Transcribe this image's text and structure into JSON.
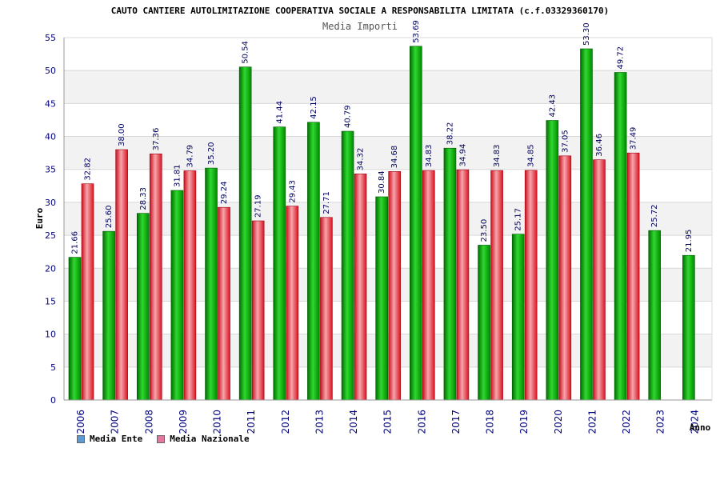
{
  "chart_data": {
    "type": "bar",
    "title": "CAUTO CANTIERE AUTOLIMITAZIONE COOPERATIVA SOCIALE A RESPONSABILITA LIMITATA (c.f.03329360170)",
    "subtitle": "Media Importi",
    "ylabel": "Euro",
    "xlabel": "Anno",
    "ylim": [
      0,
      55
    ],
    "yticks": [
      "0",
      "5",
      "10",
      "15",
      "20",
      "25",
      "30",
      "35",
      "40",
      "45",
      "50",
      "55"
    ],
    "categories": [
      "2006",
      "2007",
      "2008",
      "2009",
      "2010",
      "2011",
      "2012",
      "2013",
      "2014",
      "2015",
      "2016",
      "2017",
      "2018",
      "2019",
      "2020",
      "2021",
      "2022",
      "2023",
      "2024"
    ],
    "series": [
      {
        "name": "Media Ente",
        "color": "#00b000",
        "legend_color": "#5b9bd5",
        "values": [
          21.66,
          25.6,
          28.33,
          31.81,
          35.2,
          50.54,
          41.44,
          42.15,
          40.79,
          30.84,
          53.69,
          38.22,
          23.5,
          25.17,
          42.43,
          53.3,
          49.72,
          25.72,
          21.95
        ],
        "labels": [
          "21.66",
          "25.60",
          "28.33",
          "31.81",
          "35.20",
          "50.54",
          "41.44",
          "42.15",
          "40.79",
          "30.84",
          "53.69",
          "38.22",
          "23.50",
          "25.17",
          "42.43",
          "53.30",
          "49.72",
          "25.72",
          "21.95"
        ]
      },
      {
        "name": "Media Nazionale",
        "color": "#e8202a",
        "legend_color": "#e377a0",
        "values": [
          32.82,
          38.0,
          37.36,
          34.79,
          29.24,
          27.19,
          29.43,
          27.71,
          34.32,
          34.68,
          34.83,
          34.94,
          34.83,
          34.85,
          37.05,
          36.46,
          37.49,
          null,
          null
        ],
        "labels": [
          "32.82",
          "38.00",
          "37.36",
          "34.79",
          "29.24",
          "27.19",
          "29.43",
          "27.71",
          "34.32",
          "34.68",
          "34.83",
          "34.94",
          "34.83",
          "34.85",
          "37.05",
          "36.46",
          "37.49",
          null,
          null
        ]
      }
    ],
    "grid": true,
    "legend": "bottom-left"
  }
}
